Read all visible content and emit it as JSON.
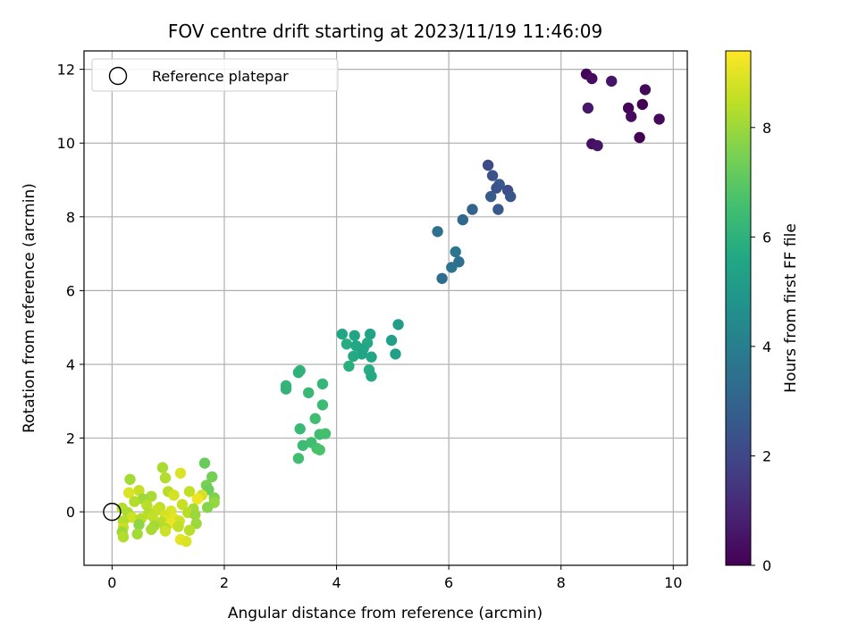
{
  "chart_data": {
    "type": "scatter",
    "title": "FOV centre drift starting at 2023/11/19 11:46:09",
    "xlabel": "Angular distance from reference (arcmin)",
    "ylabel": "Rotation from reference (arcmin)",
    "xlim": [
      -0.5,
      10.25
    ],
    "ylim": [
      -1.45,
      12.5
    ],
    "xticks": [
      0,
      2,
      4,
      6,
      8,
      10
    ],
    "yticks": [
      0,
      2,
      4,
      6,
      8,
      10,
      12
    ],
    "grid": true,
    "legend": {
      "location": "upper-left",
      "entries": [
        "Reference platepar"
      ]
    },
    "colorbar": {
      "label": "Hours from first FF file",
      "colormap": "viridis",
      "range": [
        0,
        9.4
      ],
      "ticks": [
        0,
        2,
        4,
        6,
        8
      ]
    },
    "reference_point": {
      "x": 0,
      "y": 0,
      "label": "Reference platepar"
    },
    "point_columns": [
      "x",
      "y",
      "hours"
    ],
    "points": [
      [
        8.45,
        11.87,
        0.1
      ],
      [
        8.55,
        11.75,
        0.3
      ],
      [
        8.9,
        11.68,
        0.5
      ],
      [
        9.5,
        11.45,
        0.2
      ],
      [
        9.45,
        11.05,
        0.0
      ],
      [
        8.48,
        10.95,
        0.6
      ],
      [
        9.2,
        10.95,
        0.1
      ],
      [
        9.25,
        10.72,
        0.3
      ],
      [
        9.75,
        10.65,
        0.2
      ],
      [
        9.4,
        10.15,
        0.0
      ],
      [
        8.55,
        9.98,
        0.4
      ],
      [
        8.65,
        9.93,
        0.5
      ],
      [
        6.7,
        9.4,
        2.1
      ],
      [
        6.78,
        9.12,
        2.3
      ],
      [
        6.9,
        8.88,
        2.6
      ],
      [
        6.85,
        8.78,
        2.4
      ],
      [
        7.05,
        8.72,
        2.2
      ],
      [
        7.1,
        8.55,
        2.5
      ],
      [
        6.75,
        8.55,
        2.7
      ],
      [
        6.88,
        8.2,
        2.6
      ],
      [
        6.42,
        8.2,
        3.0
      ],
      [
        6.25,
        7.92,
        3.2
      ],
      [
        5.8,
        7.6,
        3.5
      ],
      [
        6.12,
        7.05,
        3.7
      ],
      [
        6.18,
        6.78,
        3.4
      ],
      [
        6.05,
        6.63,
        3.6
      ],
      [
        5.88,
        6.33,
        3.3
      ],
      [
        5.1,
        5.08,
        5.2
      ],
      [
        4.6,
        4.82,
        5.4
      ],
      [
        4.32,
        4.78,
        5.5
      ],
      [
        4.1,
        4.82,
        5.6
      ],
      [
        4.98,
        4.65,
        5.3
      ],
      [
        4.55,
        4.58,
        5.7
      ],
      [
        4.18,
        4.55,
        5.8
      ],
      [
        4.35,
        4.5,
        5.6
      ],
      [
        4.48,
        4.43,
        5.5
      ],
      [
        4.45,
        4.28,
        5.4
      ],
      [
        4.3,
        4.22,
        5.7
      ],
      [
        4.62,
        4.2,
        5.6
      ],
      [
        5.05,
        4.28,
        5.3
      ],
      [
        4.22,
        3.95,
        5.9
      ],
      [
        4.58,
        3.85,
        5.8
      ],
      [
        4.62,
        3.68,
        5.7
      ],
      [
        3.35,
        3.83,
        6.1
      ],
      [
        3.32,
        3.78,
        6.0
      ],
      [
        3.1,
        3.42,
        6.2
      ],
      [
        3.1,
        3.33,
        6.1
      ],
      [
        3.5,
        3.23,
        6.3
      ],
      [
        3.75,
        3.47,
        6.2
      ],
      [
        3.75,
        2.9,
        6.4
      ],
      [
        3.62,
        2.53,
        6.5
      ],
      [
        3.35,
        2.25,
        6.3
      ],
      [
        3.7,
        2.1,
        6.5
      ],
      [
        3.8,
        2.12,
        6.6
      ],
      [
        3.55,
        1.88,
        6.5
      ],
      [
        3.4,
        1.8,
        6.4
      ],
      [
        3.65,
        1.72,
        6.6
      ],
      [
        3.7,
        1.68,
        6.7
      ],
      [
        3.32,
        1.45,
        6.5
      ],
      [
        1.65,
        1.32,
        7.2
      ],
      [
        0.9,
        1.2,
        8.2
      ],
      [
        1.22,
        1.05,
        8.9
      ],
      [
        1.78,
        0.95,
        7.4
      ],
      [
        0.95,
        0.92,
        8.3
      ],
      [
        0.32,
        0.88,
        8.1
      ],
      [
        1.68,
        0.72,
        7.5
      ],
      [
        1.72,
        0.6,
        7.3
      ],
      [
        0.48,
        0.58,
        8.6
      ],
      [
        1.0,
        0.55,
        8.4
      ],
      [
        1.38,
        0.55,
        8.5
      ],
      [
        0.3,
        0.52,
        8.9
      ],
      [
        1.6,
        0.45,
        8.8
      ],
      [
        1.1,
        0.45,
        8.8
      ],
      [
        0.7,
        0.42,
        8.2
      ],
      [
        1.82,
        0.38,
        7.6
      ],
      [
        1.52,
        0.35,
        9.2
      ],
      [
        0.55,
        0.35,
        8.0
      ],
      [
        0.4,
        0.28,
        8.3
      ],
      [
        1.82,
        0.25,
        7.9
      ],
      [
        1.25,
        0.2,
        8.6
      ],
      [
        0.62,
        0.18,
        8.4
      ],
      [
        0.85,
        0.12,
        8.5
      ],
      [
        1.7,
        0.12,
        7.7
      ],
      [
        0.18,
        0.1,
        8.3
      ],
      [
        1.45,
        0.08,
        8.1
      ],
      [
        0.8,
        0.05,
        8.6
      ],
      [
        1.05,
        0.02,
        8.9
      ],
      [
        0.28,
        -0.02,
        8.2
      ],
      [
        1.35,
        -0.02,
        8.4
      ],
      [
        0.65,
        -0.05,
        8.3
      ],
      [
        1.48,
        -0.08,
        8.0
      ],
      [
        0.95,
        -0.1,
        8.8
      ],
      [
        0.72,
        -0.12,
        8.5
      ],
      [
        0.35,
        -0.15,
        8.7
      ],
      [
        1.1,
        -0.18,
        9.0
      ],
      [
        0.52,
        -0.18,
        8.4
      ],
      [
        0.98,
        -0.22,
        8.9
      ],
      [
        1.2,
        -0.25,
        8.7
      ],
      [
        0.2,
        -0.25,
        8.3
      ],
      [
        0.88,
        -0.28,
        8.4
      ],
      [
        1.05,
        -0.3,
        9.1
      ],
      [
        1.5,
        -0.32,
        8.0
      ],
      [
        0.48,
        -0.35,
        7.8
      ],
      [
        0.75,
        -0.38,
        8.1
      ],
      [
        1.18,
        -0.4,
        8.5
      ],
      [
        0.2,
        -0.42,
        8.6
      ],
      [
        0.95,
        -0.45,
        8.3
      ],
      [
        0.7,
        -0.48,
        8.2
      ],
      [
        1.38,
        -0.5,
        8.4
      ],
      [
        0.18,
        -0.55,
        8.0
      ],
      [
        0.95,
        -0.52,
        8.7
      ],
      [
        0.45,
        -0.6,
        8.1
      ],
      [
        0.2,
        -0.68,
        8.3
      ],
      [
        1.22,
        -0.75,
        9.0
      ],
      [
        1.32,
        -0.8,
        8.9
      ]
    ]
  }
}
